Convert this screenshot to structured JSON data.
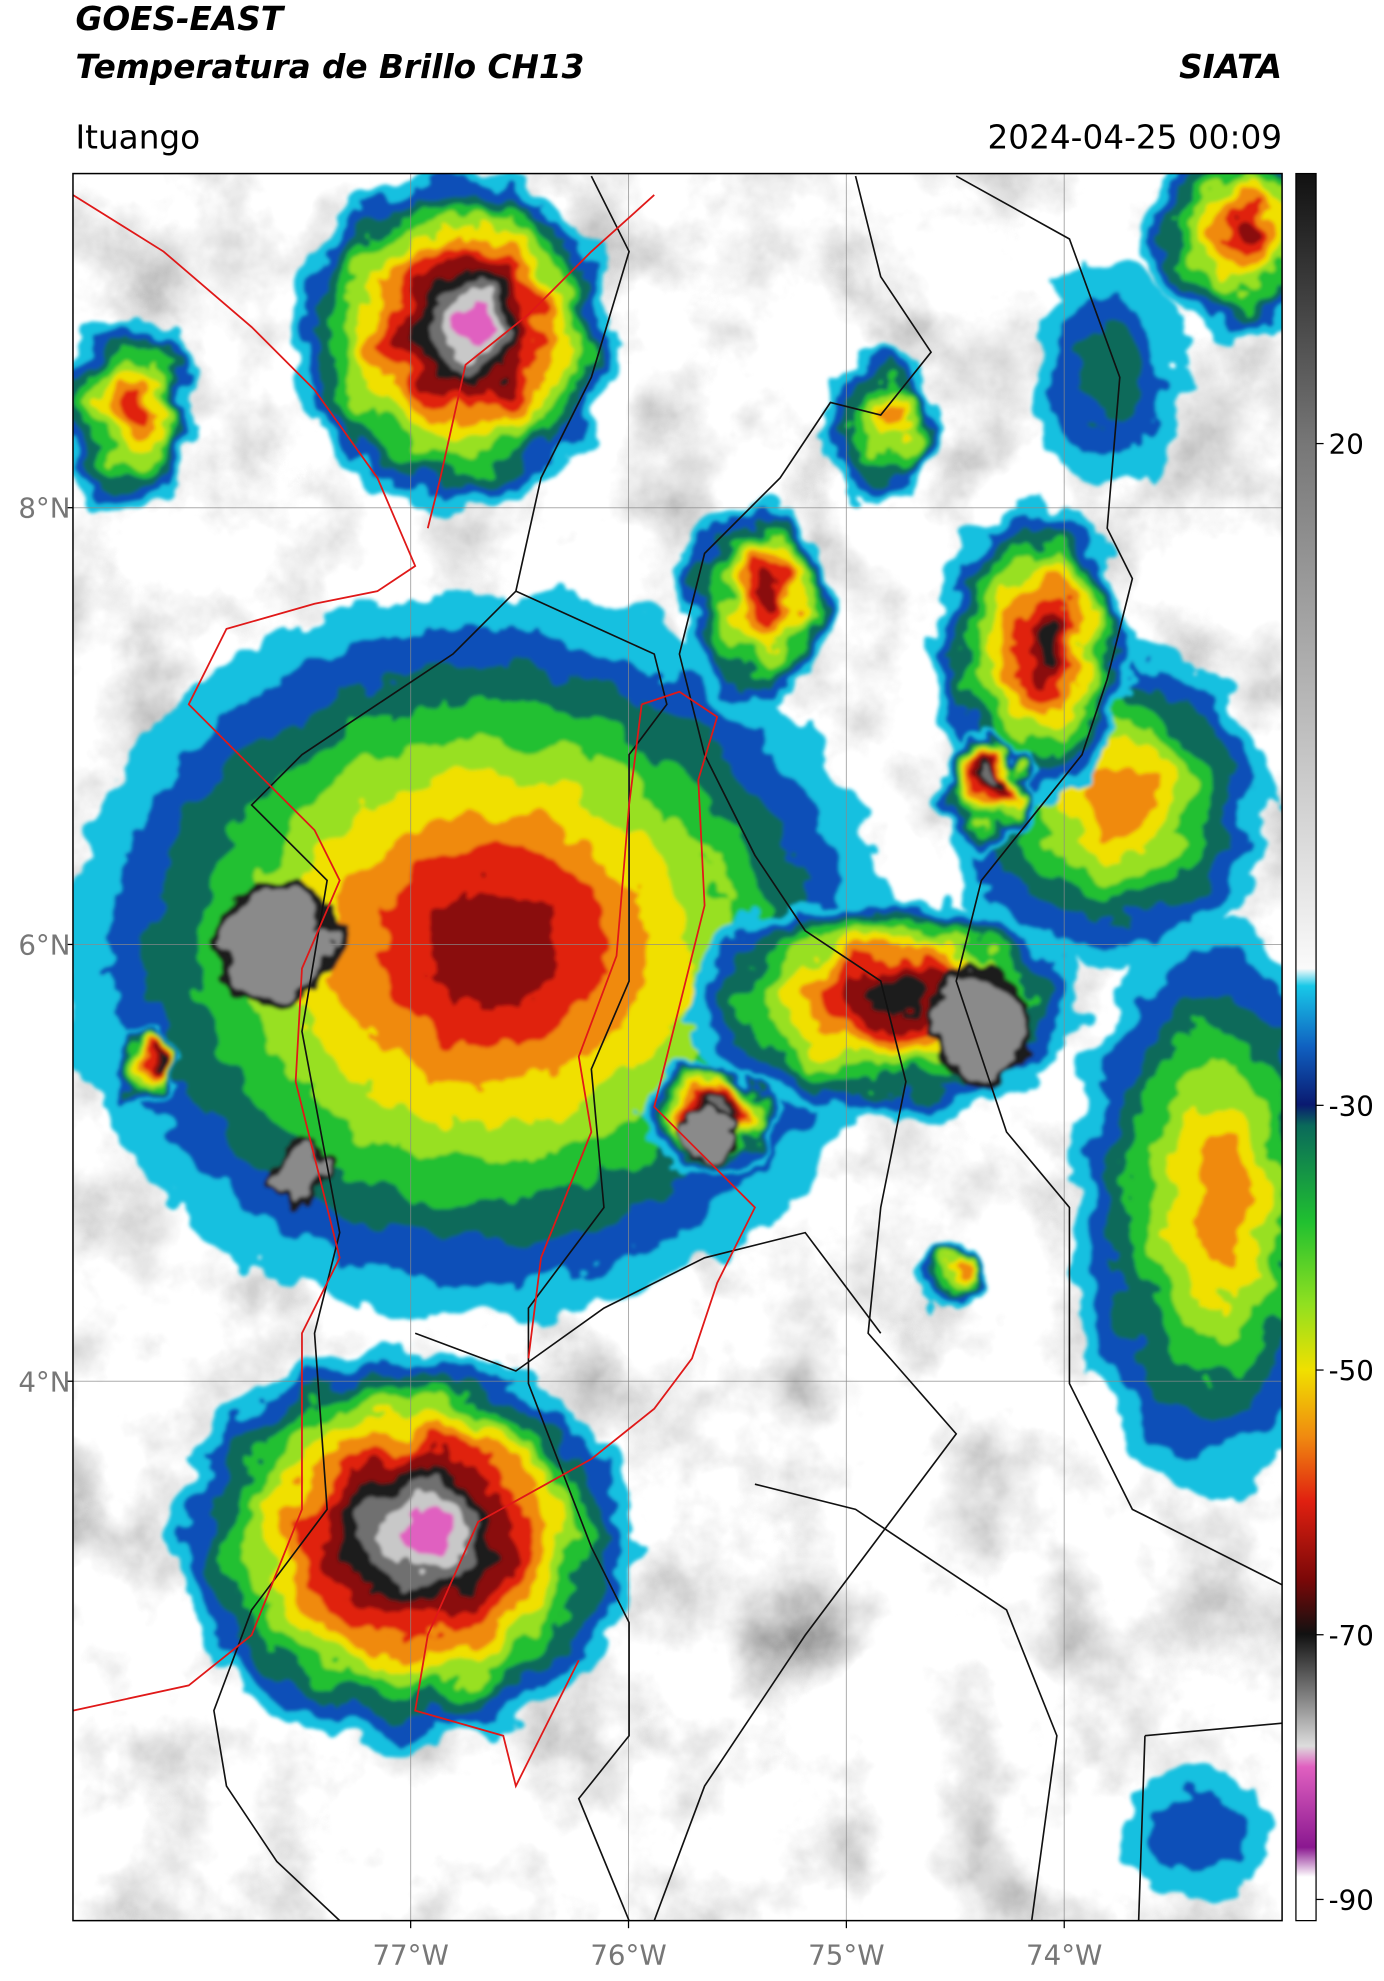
{
  "header": {
    "title": "GOES-EAST",
    "subtitle": "Temperatura de Brillo CH13",
    "source": "SIATA",
    "location": "Ituango",
    "datetime": "2024-04-25 00:09"
  },
  "map": {
    "xlim": [
      -78.55,
      -73.0
    ],
    "ylim": [
      1.53,
      9.53
    ],
    "xticks": [
      {
        "value": -77,
        "label": "77°W"
      },
      {
        "value": -76,
        "label": "76°W"
      },
      {
        "value": -75,
        "label": "75°W"
      },
      {
        "value": -74,
        "label": "74°W"
      }
    ],
    "yticks": [
      {
        "value": 8,
        "label": "8°N"
      },
      {
        "value": 6,
        "label": "6°N"
      },
      {
        "value": 4,
        "label": "4°N"
      }
    ],
    "grid": true
  },
  "colorbar": {
    "lim": [
      -91.6,
      40.4
    ],
    "ticks": [
      20,
      -30,
      -50,
      -70,
      -90
    ]
  }
}
